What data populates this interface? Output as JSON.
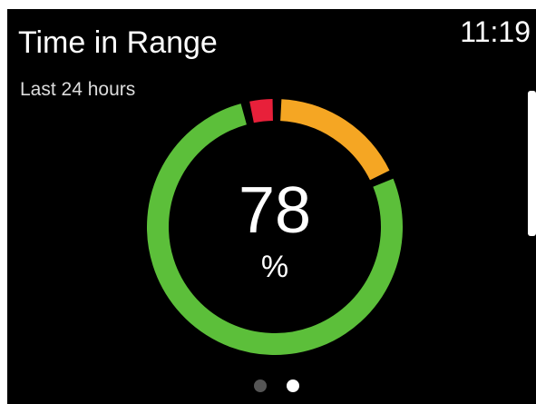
{
  "header": {
    "title": "Time in Range",
    "subtitle": "Last 24 hours",
    "time": "11:19"
  },
  "chart_data": {
    "type": "donut",
    "start_angle": 3,
    "values": [
      18,
      78,
      4
    ],
    "colors": [
      "#f5a623",
      "#5cbf3a",
      "#e8203a"
    ],
    "center_value_index": 1,
    "unit": "%"
  }
}
